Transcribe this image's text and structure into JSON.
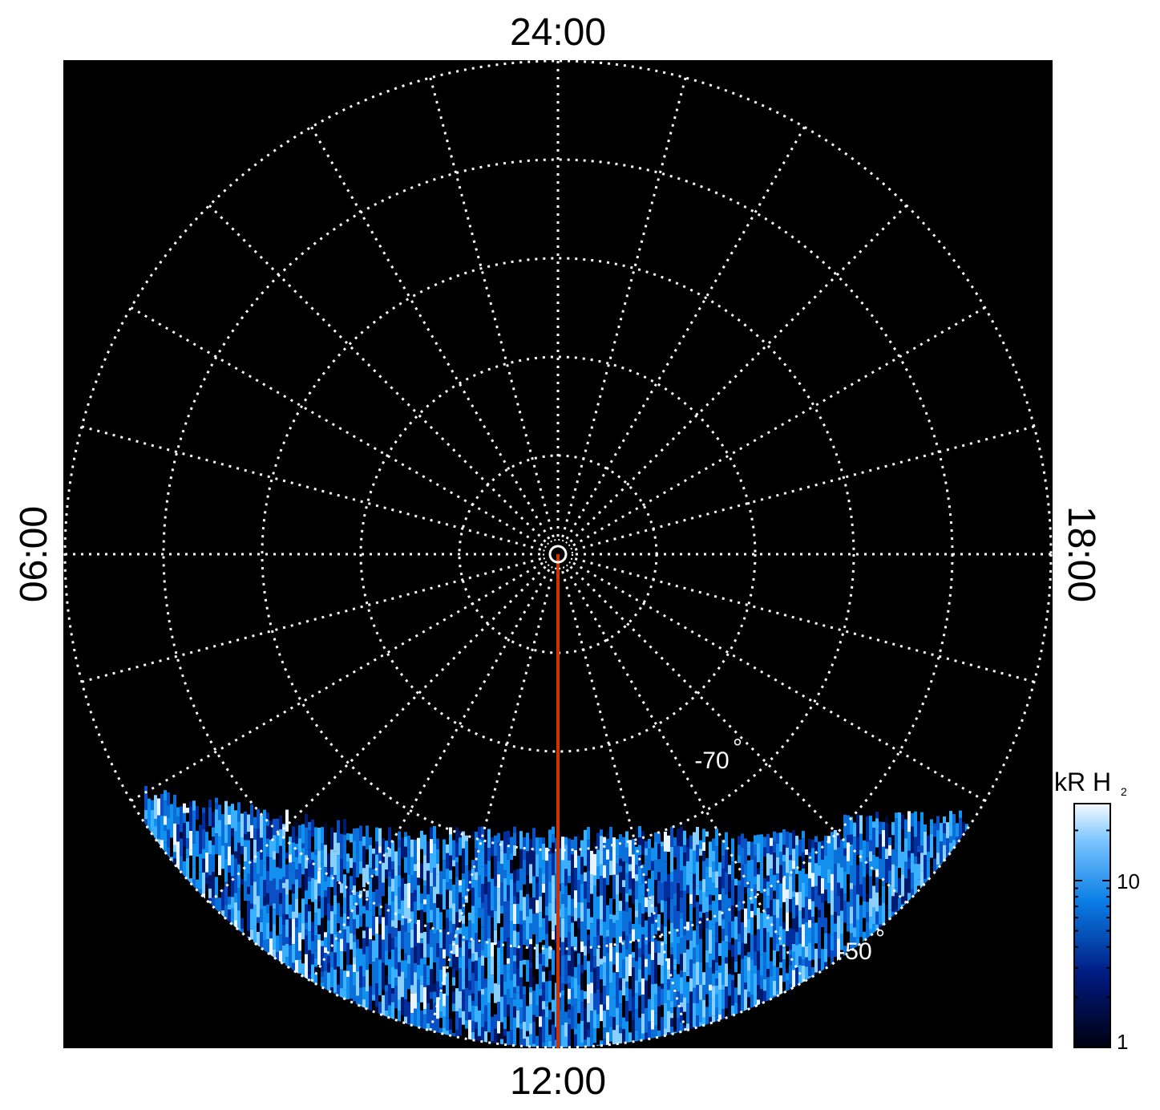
{
  "plot": {
    "local_time_labels": {
      "top": "24:00",
      "bottom": "12:00",
      "left": "06:00",
      "right": "18:00"
    },
    "latitude_labels": [
      {
        "text": "-70",
        "latitude": -70
      },
      {
        "text": "-50",
        "latitude": -50
      }
    ],
    "degree_symbol": "°",
    "latitude_circles_deg": [
      -80,
      -70,
      -60,
      -50,
      -40
    ],
    "meridian_count": 24,
    "outer_latitude_deg": -40,
    "highlight_meridian_local_time": "12:00",
    "colors": {
      "background": "#000000",
      "grid": "#ffffff",
      "meridian_highlight": "#cc3300",
      "emission_low": "#000030",
      "emission_mid": "#0a7ee6",
      "emission_high": "#e8f4ff"
    }
  },
  "colorbar": {
    "title_main": "kR H",
    "title_sub": "2",
    "tick_labels": [
      "10",
      "1"
    ],
    "scale": "log"
  }
}
